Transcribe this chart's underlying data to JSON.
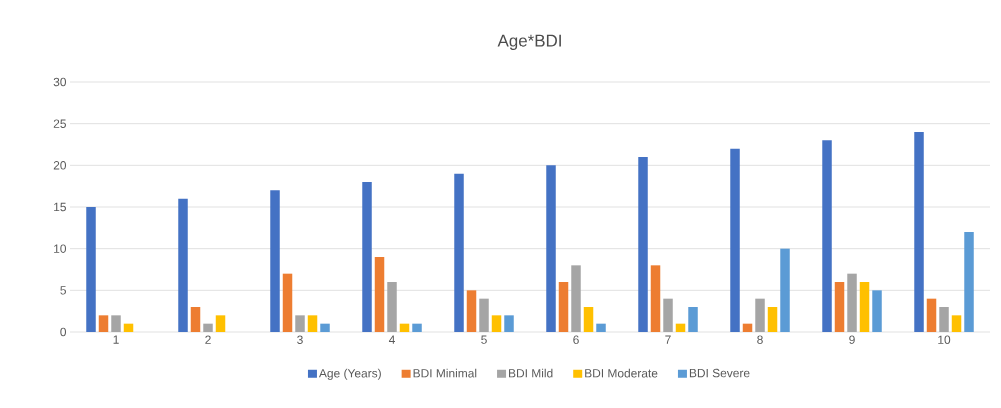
{
  "chart_data": {
    "type": "bar",
    "title": "Age*BDI",
    "categories": [
      "1",
      "2",
      "3",
      "4",
      "5",
      "6",
      "7",
      "8",
      "9",
      "10"
    ],
    "series": [
      {
        "name": "Age (Years)",
        "color": "#4472c4",
        "values": [
          15,
          16,
          17,
          18,
          19,
          20,
          21,
          22,
          23,
          24
        ]
      },
      {
        "name": "BDI Minimal",
        "color": "#ed7d31",
        "values": [
          2,
          3,
          7,
          9,
          5,
          6,
          8,
          1,
          6,
          4
        ]
      },
      {
        "name": "BDI Mild",
        "color": "#a5a5a5",
        "values": [
          2,
          1,
          2,
          6,
          4,
          8,
          4,
          4,
          7,
          3
        ]
      },
      {
        "name": "BDI Moderate",
        "color": "#ffc000",
        "values": [
          1,
          2,
          2,
          1,
          2,
          3,
          1,
          3,
          6,
          2
        ]
      },
      {
        "name": "BDI Severe",
        "color": "#5b9bd5",
        "values": [
          0,
          0,
          1,
          1,
          2,
          1,
          3,
          10,
          5,
          12
        ]
      }
    ],
    "ylim": [
      0,
      30
    ],
    "yticks": [
      0,
      5,
      10,
      15,
      20,
      25,
      30
    ],
    "grid": "y",
    "legend": "bottom"
  }
}
